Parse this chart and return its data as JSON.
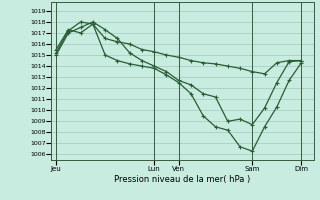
{
  "background_color": "#c8ece0",
  "grid_color": "#9bbfb0",
  "line_color": "#2a5c36",
  "ylim": [
    1005.5,
    1019.8
  ],
  "yticks": [
    1006,
    1007,
    1008,
    1009,
    1010,
    1011,
    1012,
    1013,
    1014,
    1015,
    1016,
    1017,
    1018,
    1019
  ],
  "xlabel": "Pression niveau de la mer( hPa )",
  "day_tick_labels": [
    "Jeu",
    "Lun",
    "Ven",
    "Sam",
    "Dim"
  ],
  "day_tick_x": [
    0,
    8,
    10,
    16,
    20
  ],
  "xlim": [
    -0.4,
    21.0
  ],
  "line1_x": [
    0,
    1,
    2,
    3,
    4,
    5,
    6,
    7,
    8,
    9,
    10,
    11,
    12,
    13,
    14,
    15,
    16,
    17,
    18,
    19,
    20
  ],
  "line1_y": [
    1015.0,
    1017.0,
    1017.5,
    1018.0,
    1017.3,
    1016.5,
    1015.2,
    1014.5,
    1014.0,
    1013.5,
    1012.7,
    1012.3,
    1011.5,
    1011.2,
    1009.0,
    1009.2,
    1008.7,
    1010.2,
    1012.5,
    1014.4,
    1014.5
  ],
  "line2_x": [
    0,
    1,
    2,
    3,
    4,
    5,
    6,
    7,
    8,
    9,
    10,
    11,
    12,
    13,
    14,
    15,
    16,
    17,
    18,
    19,
    20
  ],
  "line2_y": [
    1015.2,
    1017.2,
    1018.0,
    1017.8,
    1015.0,
    1014.5,
    1014.2,
    1014.0,
    1013.8,
    1013.2,
    1012.5,
    1011.5,
    1009.5,
    1008.5,
    1008.2,
    1006.7,
    1006.3,
    1008.5,
    1010.3,
    1012.7,
    1014.3
  ],
  "line3_x": [
    0,
    1,
    2,
    3,
    4,
    5,
    6,
    7,
    8,
    9,
    10,
    11,
    12,
    13,
    14,
    15,
    16,
    17,
    18,
    19,
    20
  ],
  "line3_y": [
    1015.5,
    1017.3,
    1017.0,
    1017.8,
    1016.5,
    1016.2,
    1016.0,
    1015.5,
    1015.3,
    1015.0,
    1014.8,
    1014.5,
    1014.3,
    1014.2,
    1014.0,
    1013.8,
    1013.5,
    1013.3,
    1014.3,
    1014.5,
    1014.5
  ],
  "vline_x": [
    0,
    8,
    10,
    16,
    20
  ],
  "linewidth": 0.9,
  "markersize": 2.5
}
